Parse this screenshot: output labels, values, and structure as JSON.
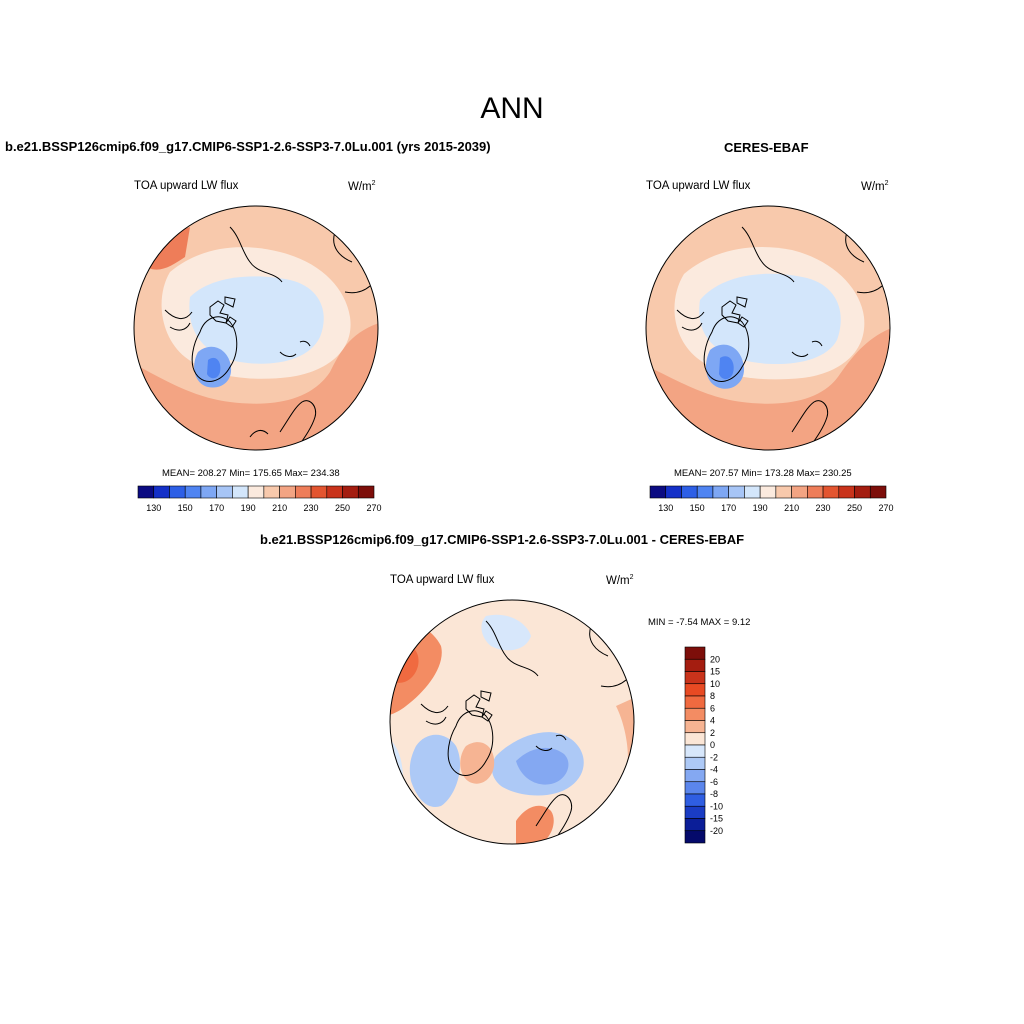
{
  "main_title": "ANN",
  "panels": [
    {
      "id": "model",
      "title": "b.e21.BSSP126cmip6.f09_g17.CMIP6-SSP1-2.6-SSP3-7.0Lu.001 (yrs 2015-2039)",
      "variable": "TOA upward LW flux",
      "units": "W/m",
      "units_exp": "2",
      "stats": "MEAN= 208.27  Min= 175.65  Max= 234.38"
    },
    {
      "id": "obs",
      "title": "CERES-EBAF",
      "variable": "TOA upward LW flux",
      "units": "W/m",
      "units_exp": "2",
      "stats": "MEAN= 207.57  Min= 173.28  Max= 230.25"
    },
    {
      "id": "diff",
      "title": "b.e21.BSSP126cmip6.f09_g17.CMIP6-SSP1-2.6-SSP3-7.0Lu.001 - CERES-EBAF",
      "variable": "TOA upward LW flux",
      "units": "W/m",
      "units_exp": "2",
      "minmax": "MIN =  -7.54 MAX =   9.12"
    }
  ],
  "colorbar_abs": {
    "orientation": "horizontal",
    "labels": [
      "130",
      "150",
      "170",
      "190",
      "210",
      "230",
      "250",
      "270"
    ],
    "colors": [
      "#0b0b82",
      "#1430c8",
      "#2d5fe6",
      "#4f84f2",
      "#7ea7f4",
      "#a7c5f6",
      "#d3e6fb",
      "#fbeade",
      "#f8c9ac",
      "#f3a483",
      "#ee7d59",
      "#e35530",
      "#c9331b",
      "#a41d10",
      "#7d0e0a"
    ]
  },
  "colorbar_diff": {
    "orientation": "vertical",
    "labels": [
      "20",
      "15",
      "10",
      "8",
      "6",
      "4",
      "2",
      "0",
      "-2",
      "-4",
      "-6",
      "-8",
      "-10",
      "-15",
      "-20"
    ],
    "colors": [
      "#7d0e0a",
      "#a41d10",
      "#c9331b",
      "#e84a23",
      "#f06a40",
      "#f38c63",
      "#f6b493",
      "#fbe6d6",
      "#d7e7fb",
      "#adc9f6",
      "#84a8f2",
      "#5b86ec",
      "#2f5ee2",
      "#1a3cc4",
      "#0b1e98",
      "#050a6b"
    ]
  }
}
